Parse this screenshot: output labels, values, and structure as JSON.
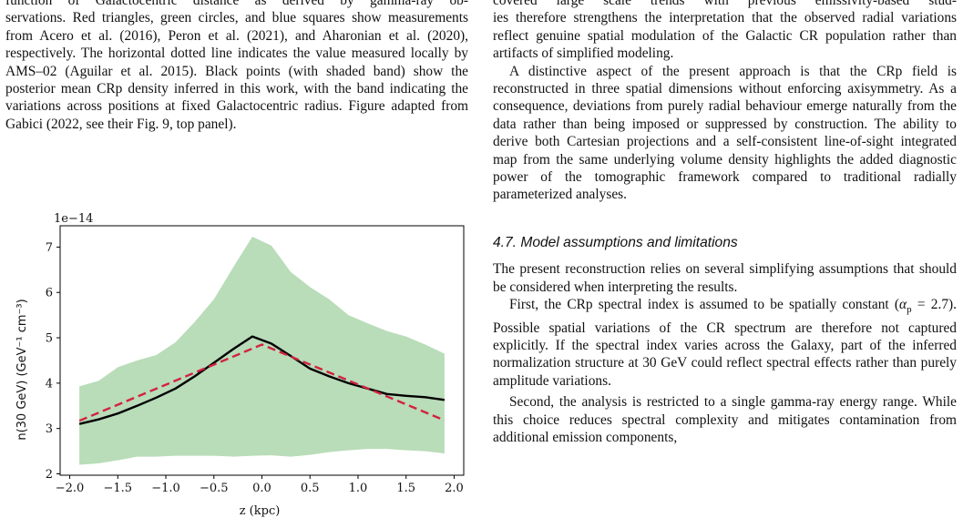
{
  "left_column": {
    "caption_line1": "function of Galactocentric distance as derived by gamma-ray ob-",
    "caption_rest": "servations. Red triangles, green circles, and blue squares show measurements from Acero et al. (2016), Peron et al. (2021), and Aharonian et al. (2020), respectively. The horizontal dotted line indicates the value measured locally by AMS–02 (Aguilar et al. 2015). Black points (with shaded band) show the posterior mean CRp density inferred in this work, with the band indicating the variations across positions at fixed Galactocentric radius. Figure adapted from Gabici (2022, see their Fig. 9, top panel)."
  },
  "right_column": {
    "para1_line1": "covered large scale trends with previous emissivity-based stud-",
    "para1_rest": "ies therefore strengthens the interpretation that the observed radial variations reflect genuine spatial modulation of the Galactic CR population rather than artifacts of simplified modeling.",
    "para2": "A distinctive aspect of the present approach is that the CRp field is reconstructed in three spatial dimensions without enforcing axisymmetry. As a consequence, deviations from purely radial behaviour emerge naturally from the data rather than being imposed or suppressed by construction. The ability to derive both Cartesian projections and a self-consistent line-of-sight integrated map from the same underlying volume density highlights the added diagnostic power of the tomographic framework compared to traditional radially parameterized analyses.",
    "section_heading": "4.7. Model assumptions and limitations",
    "para3": "The present reconstruction relies on several simplifying assumptions that should be considered when interpreting the results.",
    "para4_a": "First, the CRp spectral index is assumed to be spatially constant (",
    "para4_alpha": "α",
    "para4_sub": "p",
    "para4_b": " = 2.7). Possible spatial variations of the CR spectrum are therefore not captured explicitly. If the spectral index varies across the Galaxy, part of the inferred normalization structure at 30 GeV could reflect spectral effects rather than purely amplitude variations.",
    "para5": "Second, the analysis is restricted to a single gamma-ray energy range. While this choice reduces spectral complexity and mitigates contamination from additional emission components,"
  },
  "chart_data": {
    "type": "line",
    "offset_label": "1e−14",
    "xlabel": "z (kpc)",
    "ylabel": "n(30 GeV) (GeV⁻¹ cm⁻³)",
    "xlim": [
      -2.1,
      2.1
    ],
    "ylim": [
      1.97,
      7.47
    ],
    "xticks": [
      -2.0,
      -1.5,
      -1.0,
      -0.5,
      0.0,
      0.5,
      1.0,
      1.5,
      2.0
    ],
    "xtick_labels": [
      "−2.0",
      "−1.5",
      "−1.0",
      "−0.5",
      "0.0",
      "0.5",
      "1.0",
      "1.5",
      "2.0"
    ],
    "yticks": [
      2,
      3,
      4,
      5,
      6,
      7
    ],
    "ytick_labels": [
      "2",
      "3",
      "4",
      "5",
      "6",
      "7"
    ],
    "grid": false,
    "series": [
      {
        "style": "shaded band",
        "color": "#b9dcb9",
        "x": [
          -1.9,
          -1.7,
          -1.5,
          -1.3,
          -1.1,
          -0.9,
          -0.7,
          -0.5,
          -0.3,
          -0.1,
          0.1,
          0.3,
          0.5,
          0.7,
          0.9,
          1.1,
          1.3,
          1.5,
          1.7,
          1.9
        ],
        "upper": [
          3.93,
          4.05,
          4.35,
          4.5,
          4.62,
          4.9,
          5.35,
          5.85,
          6.55,
          7.23,
          7.03,
          6.45,
          6.12,
          5.85,
          5.5,
          5.32,
          5.15,
          5.03,
          4.85,
          4.65
        ],
        "lower": [
          2.2,
          2.23,
          2.3,
          2.38,
          2.38,
          2.4,
          2.4,
          2.4,
          2.38,
          2.4,
          2.41,
          2.38,
          2.42,
          2.48,
          2.52,
          2.55,
          2.55,
          2.52,
          2.5,
          2.45
        ]
      },
      {
        "style": "solid",
        "color": "#000000",
        "x": [
          -1.9,
          -1.7,
          -1.5,
          -1.3,
          -1.1,
          -0.9,
          -0.7,
          -0.5,
          -0.3,
          -0.1,
          0.1,
          0.3,
          0.5,
          0.7,
          0.9,
          1.1,
          1.3,
          1.5,
          1.7,
          1.9
        ],
        "y": [
          3.1,
          3.2,
          3.33,
          3.5,
          3.68,
          3.88,
          4.15,
          4.45,
          4.75,
          5.03,
          4.87,
          4.6,
          4.32,
          4.15,
          4.0,
          3.88,
          3.76,
          3.72,
          3.69,
          3.63
        ]
      },
      {
        "style": "dashed",
        "color": "#d1233f",
        "x": [
          -1.9,
          0.0,
          1.9
        ],
        "y": [
          3.17,
          4.85,
          3.18
        ]
      }
    ]
  }
}
